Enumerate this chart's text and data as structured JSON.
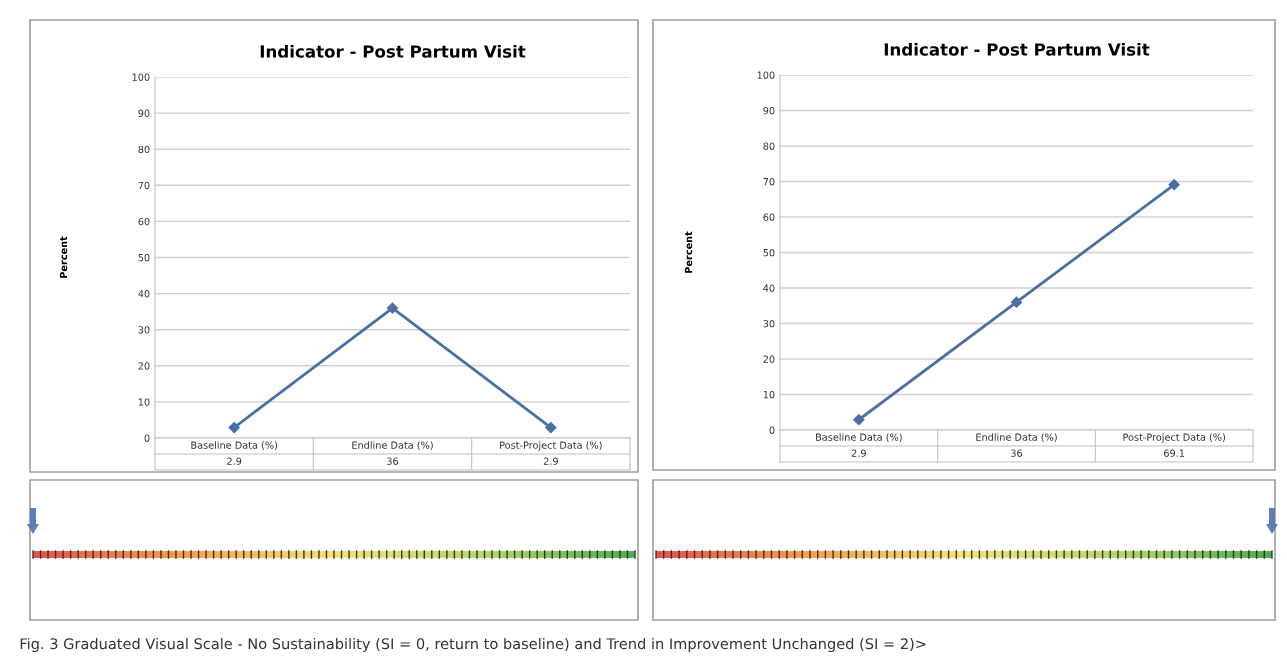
{
  "chart_data": [
    {
      "type": "line",
      "title": "Indicator - Post Partum Visit",
      "ylabel": "Percent",
      "categories": [
        "Baseline Data (%)",
        "Endline Data (%)",
        "Post-Project Data (%)"
      ],
      "series": [
        {
          "color": "#4a6fa5",
          "values": [
            2.9,
            36,
            2.9
          ]
        }
      ],
      "ylim": [
        0,
        100
      ],
      "yticks": [
        0,
        10,
        20,
        30,
        40,
        50,
        60,
        70,
        80,
        90,
        100
      ],
      "grid": "y",
      "marker": "diamond",
      "data_labels": true,
      "annotations": [
        "Fig. 3 Graduated Visual Scale - No Sustainability (SI = 0, return to baseline) and Trend in Improvement Unchanged (SI = 2)>"
      ]
    },
    {
      "type": "line",
      "title": "Indicator - Post Partum Visit",
      "ylabel": "Percent",
      "categories": [
        "Baseline Data (%)",
        "Endline Data (%)",
        "Post-Project Data (%)"
      ],
      "series": [
        {
          "color": "#4a6fa5",
          "values": [
            2.9,
            36,
            69.1
          ]
        }
      ],
      "ylim": [
        0,
        100
      ],
      "yticks": [
        0,
        10,
        20,
        30,
        40,
        50,
        60,
        70,
        80,
        90,
        100
      ],
      "grid": "y",
      "marker": "diamond",
      "data_labels": true
    }
  ]
}
